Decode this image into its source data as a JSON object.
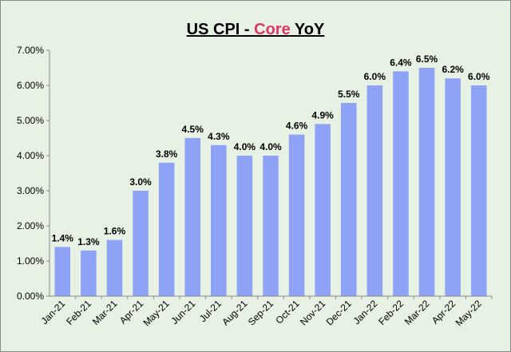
{
  "chart_data": {
    "type": "bar",
    "title_parts": [
      "US CPI - ",
      "Core",
      " YoY"
    ],
    "xlabel": "",
    "ylabel": "",
    "ylim": [
      0,
      7
    ],
    "yticks": [
      "0.00%",
      "1.00%",
      "2.00%",
      "3.00%",
      "4.00%",
      "5.00%",
      "6.00%",
      "7.00%"
    ],
    "categories": [
      "Jan-21",
      "Feb-21",
      "Mar-21",
      "Apr-21",
      "May-21",
      "Jun-21",
      "Jul-21",
      "Aug-21",
      "Sep-21",
      "Oct-21",
      "Nov-21",
      "Dec-21",
      "Jan-22",
      "Feb-22",
      "Mar-22",
      "Apr-22",
      "May-22"
    ],
    "values": [
      1.4,
      1.3,
      1.6,
      3.0,
      3.8,
      4.5,
      4.3,
      4.0,
      4.0,
      4.6,
      4.9,
      5.5,
      6.0,
      6.4,
      6.5,
      6.2,
      6.0
    ],
    "data_labels": [
      "1.4%",
      "1.3%",
      "1.6%",
      "3.0%",
      "3.8%",
      "4.5%",
      "4.3%",
      "4.0%",
      "4.0%",
      "4.6%",
      "4.9%",
      "5.5%",
      "6.0%",
      "6.4%",
      "6.5%",
      "6.2%",
      "6.0%"
    ],
    "grid": false,
    "legend": "none",
    "colors": {
      "bar": "#8ea3f5",
      "background": "#e7f1e4",
      "title_accent": "#e0356b",
      "axis": "#8a8a8a"
    }
  }
}
